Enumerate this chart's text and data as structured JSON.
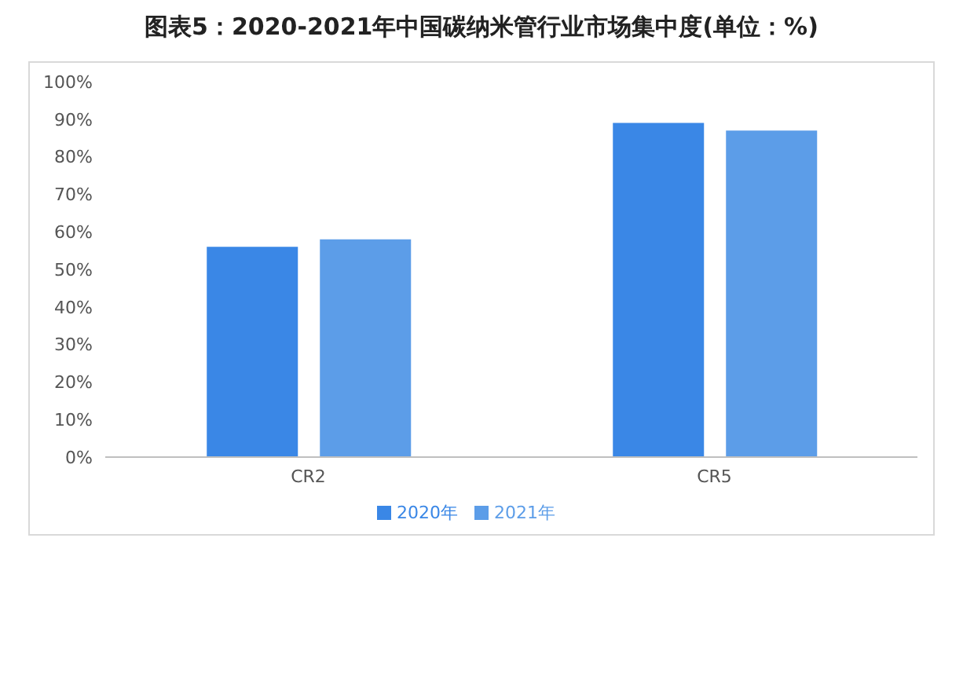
{
  "chart_data": {
    "type": "bar",
    "title": "图表5：2020-2021年中国碳纳米管行业市场集中度(单位：%)",
    "categories": [
      "CR2",
      "CR5"
    ],
    "series": [
      {
        "name": "2020年",
        "color": "#3a87e6",
        "values": [
          56,
          89
        ]
      },
      {
        "name": "2021年",
        "color": "#5c9de8",
        "values": [
          58,
          87
        ]
      }
    ],
    "ylim": [
      0,
      100
    ],
    "yticks": [
      {
        "value": 0,
        "label": "0%"
      },
      {
        "value": 10,
        "label": "10%"
      },
      {
        "value": 20,
        "label": "20%"
      },
      {
        "value": 30,
        "label": "30%"
      },
      {
        "value": 40,
        "label": "40%"
      },
      {
        "value": 50,
        "label": "50%"
      },
      {
        "value": 60,
        "label": "60%"
      },
      {
        "value": 70,
        "label": "70%"
      },
      {
        "value": 80,
        "label": "80%"
      },
      {
        "value": 90,
        "label": "90%"
      },
      {
        "value": 100,
        "label": "100%"
      }
    ],
    "grid": false,
    "legend": "bottom"
  }
}
